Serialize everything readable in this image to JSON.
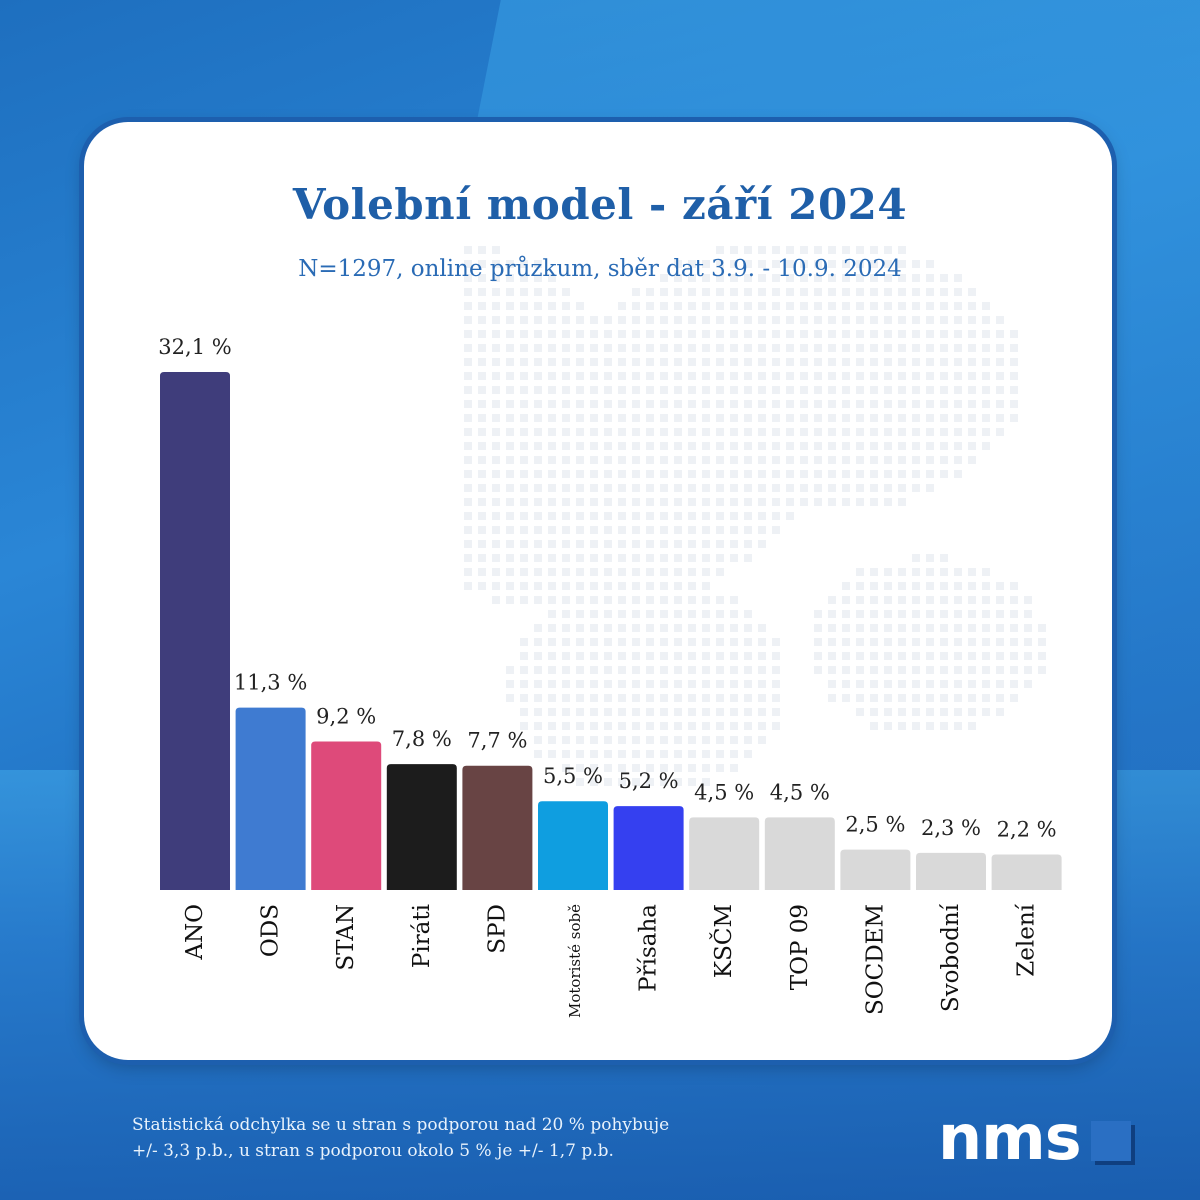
{
  "header": {
    "title": "Volební model - září 2024",
    "subtitle": "N=1297, online průzkum, sběr dat 3.9. - 10.9. 2024"
  },
  "footer": {
    "note_line1": "Statistická odchylka se u stran s podporou nad 20 % pohybuje",
    "note_line2": "+/- 3,3 p.b., u stran s podporou okolo 5 % je +/- 1,7 p.b.",
    "logo_text": "nms"
  },
  "chart_data": {
    "type": "bar",
    "title": "Volební model - září 2024",
    "subtitle": "N=1297, online průzkum, sběr dat 3.9. - 10.9. 2024",
    "xlabel": "",
    "ylabel": "",
    "ylim": [
      0,
      32.1
    ],
    "grid": false,
    "categories": [
      "ANO",
      "ODS",
      "STAN",
      "Piráti",
      "SPD",
      "Motoristé sobě",
      "Přísaha",
      "KSČM",
      "TOP 09",
      "SOCDEM",
      "Svobodní",
      "Zelení"
    ],
    "values": [
      32.1,
      11.3,
      9.2,
      7.8,
      7.7,
      5.5,
      5.2,
      4.5,
      4.5,
      2.5,
      2.3,
      2.2
    ],
    "value_labels": [
      "32,1 %",
      "11,3 %",
      "9,2 %",
      "7,8 %",
      "7,7 %",
      "5,5 %",
      "5,2 %",
      "4,5 %",
      "4,5 %",
      "2,5 %",
      "2,3 %",
      "2,2 %"
    ],
    "colors": [
      "#3f3d7b",
      "#3f7bd1",
      "#de4a7a",
      "#1c1c1c",
      "#684444",
      "#0f9ee0",
      "#3540f0",
      "#d9d9d9",
      "#d9d9d9",
      "#d9d9d9",
      "#d9d9d9",
      "#d9d9d9"
    ]
  }
}
